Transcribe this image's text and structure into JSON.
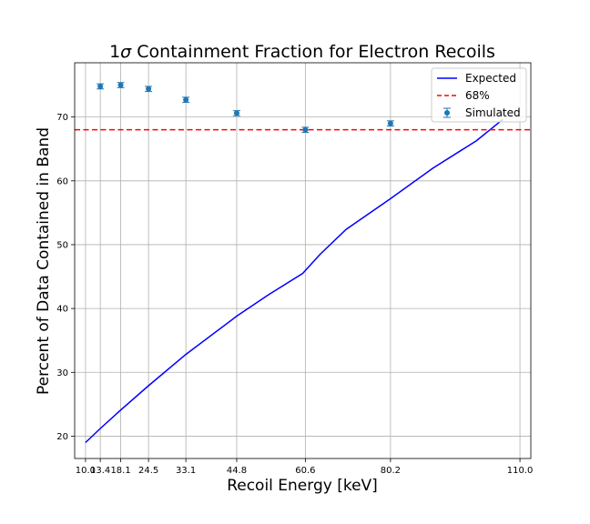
{
  "chart_data": {
    "type": "line",
    "title": "1σ Containment Fraction for Electron Recoils",
    "title_prefix": "1",
    "title_symbol": "σ",
    "title_rest": " Containment Fraction for Electron Recoils",
    "xlabel": "Recoil Energy [keV]",
    "ylabel": "Percent of Data Contained in Band",
    "xlim": [
      7.5,
      112.5
    ],
    "ylim": [
      16.5,
      78.5
    ],
    "x_ticks": [
      10.0,
      13.4,
      18.1,
      24.5,
      33.1,
      44.8,
      60.6,
      80.2,
      110.0
    ],
    "x_tick_labels": [
      "10.0",
      "13.4",
      "18.1",
      "24.5",
      "33.1",
      "44.8",
      "60.6",
      "80.2",
      "110.0"
    ],
    "y_ticks": [
      20,
      30,
      40,
      50,
      60,
      70
    ],
    "y_tick_labels": [
      "20",
      "30",
      "40",
      "50",
      "60",
      "70"
    ],
    "grid": true,
    "legend_position": "top-right",
    "series": [
      {
        "name": "Expected",
        "kind": "line",
        "color": "#0000ff",
        "x": [
          10.0,
          13.4,
          18.1,
          24.5,
          33.1,
          44.8,
          52.0,
          60.0,
          64.0,
          70.0,
          80.2,
          90.0,
          100.0,
          106.0
        ],
        "values": [
          19.0,
          21.2,
          24.1,
          27.9,
          32.8,
          38.8,
          42.1,
          45.5,
          48.5,
          52.4,
          57.2,
          62.0,
          66.3,
          69.6
        ]
      },
      {
        "name": "68%",
        "kind": "hline",
        "color": "#ff0000",
        "y": 68
      },
      {
        "name": "Simulated",
        "kind": "errorbar",
        "color": "#1f77b4",
        "x": [
          13.4,
          18.1,
          24.5,
          33.1,
          44.8,
          60.6,
          80.2
        ],
        "values": [
          74.8,
          75.0,
          74.4,
          72.7,
          70.6,
          68.0,
          69.0
        ],
        "yerr": [
          0.4,
          0.4,
          0.4,
          0.4,
          0.4,
          0.4,
          0.4
        ]
      }
    ]
  }
}
